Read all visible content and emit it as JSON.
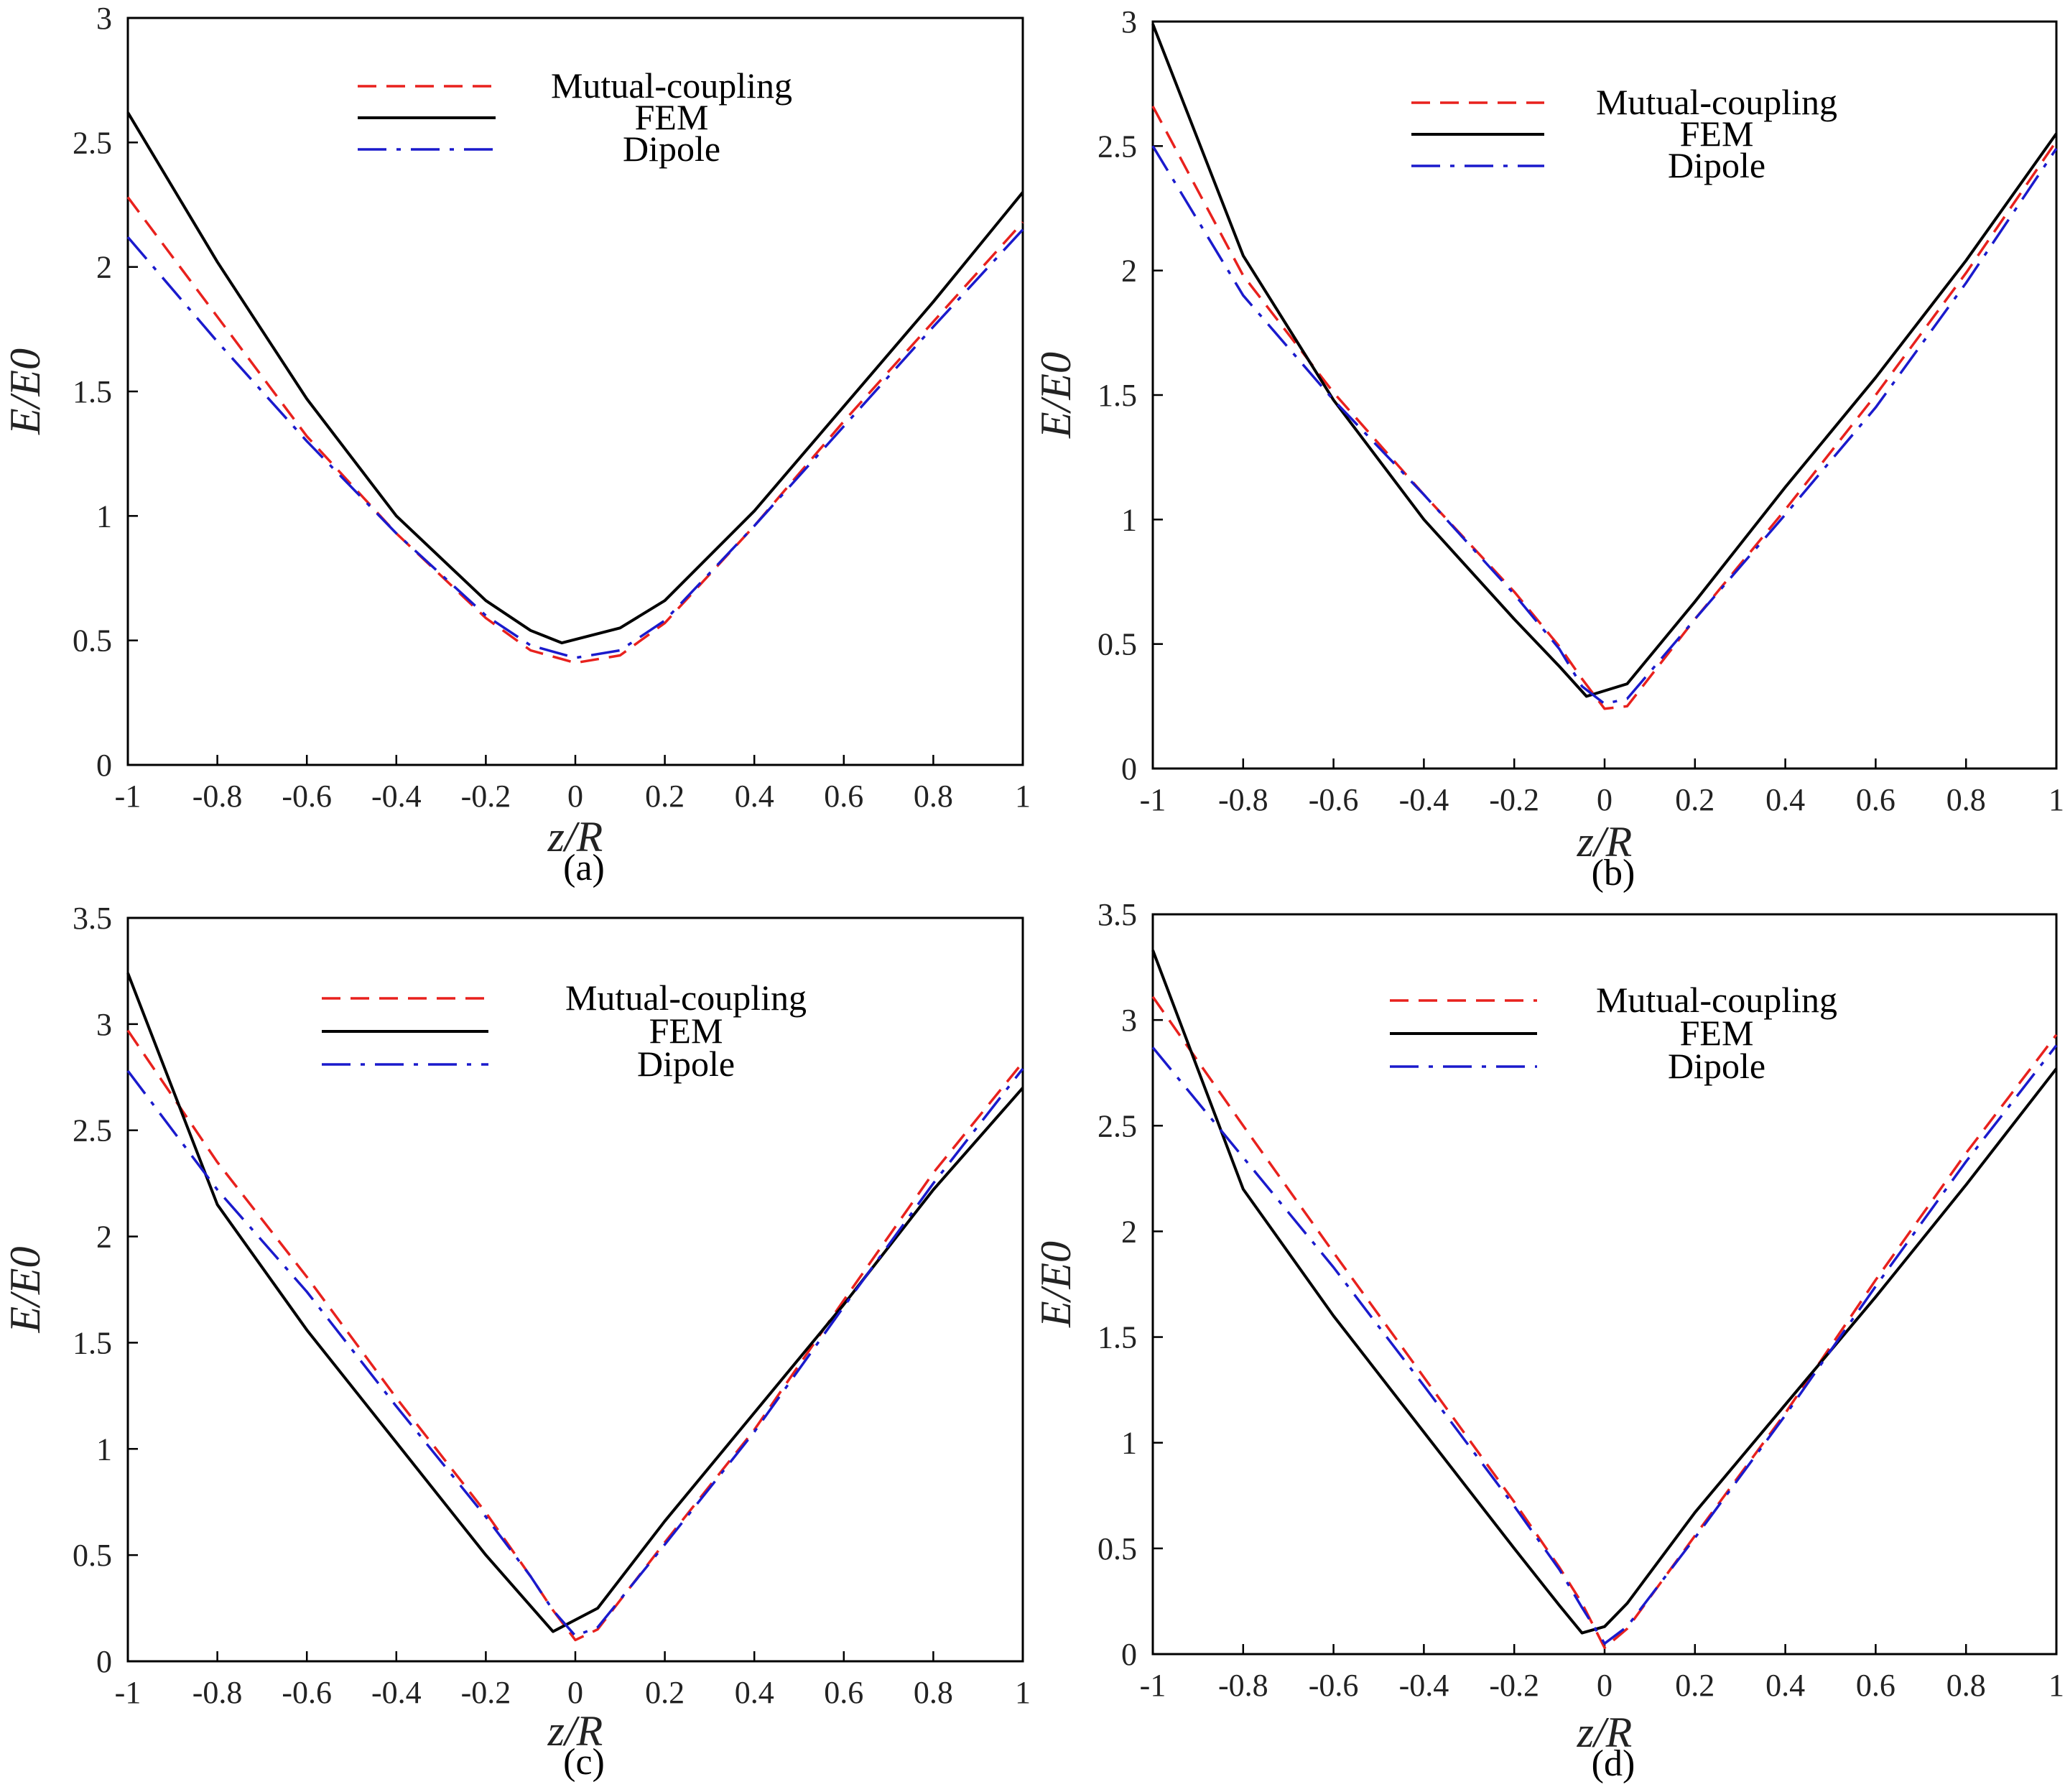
{
  "figure": "Four-panel comparison of normalized electric field along z/R",
  "colors": {
    "mutual_coupling": "#e8211d",
    "fem": "#000000",
    "dipole": "#1a1acc",
    "axis": "#000000"
  },
  "chart_data": [
    {
      "type": "line",
      "panel_label": "(a)",
      "panel_letter": "a",
      "xlabel": "z/R",
      "ylabel": "E/E0",
      "xlim": [
        -1,
        1
      ],
      "ylim": [
        0,
        3
      ],
      "xticks": [
        -1,
        -0.8,
        -0.6,
        -0.4,
        -0.2,
        0,
        0.2,
        0.4,
        0.6,
        0.8,
        1
      ],
      "xtick_labels": [
        "-1",
        "-0.8",
        "-0.6",
        "-0.4",
        "-0.2",
        "0",
        "0.2",
        "0.4",
        "0.6",
        "0.8",
        "1"
      ],
      "yticks": [
        0,
        0.5,
        1,
        1.5,
        2,
        2.5,
        3
      ],
      "ytick_labels": [
        "0",
        "0.5",
        "1",
        "1.5",
        "2",
        "2.5",
        "3"
      ],
      "legend": [
        "Mutual-coupling",
        "FEM",
        "Dipole"
      ],
      "legend_position": "top-center",
      "series": [
        {
          "name": "Mutual-coupling",
          "style": "dashed",
          "x": [
            -1,
            -0.8,
            -0.6,
            -0.4,
            -0.2,
            -0.1,
            0,
            0.1,
            0.2,
            0.4,
            0.6,
            0.8,
            1
          ],
          "y": [
            2.28,
            1.8,
            1.32,
            0.93,
            0.59,
            0.46,
            0.41,
            0.44,
            0.57,
            0.96,
            1.38,
            1.78,
            2.18
          ]
        },
        {
          "name": "FEM",
          "style": "solid",
          "x": [
            -1,
            -0.8,
            -0.6,
            -0.4,
            -0.2,
            -0.1,
            -0.03,
            0.1,
            0.2,
            0.4,
            0.6,
            0.8,
            1
          ],
          "y": [
            2.62,
            2.02,
            1.47,
            1.0,
            0.66,
            0.54,
            0.49,
            0.55,
            0.66,
            1.02,
            1.44,
            1.86,
            2.3
          ]
        },
        {
          "name": "Dipole",
          "style": "dashdot",
          "x": [
            -1,
            -0.8,
            -0.6,
            -0.4,
            -0.2,
            -0.1,
            0,
            0.1,
            0.2,
            0.4,
            0.6,
            0.8,
            1
          ],
          "y": [
            2.12,
            1.7,
            1.3,
            0.93,
            0.6,
            0.48,
            0.43,
            0.46,
            0.58,
            0.96,
            1.36,
            1.76,
            2.15
          ]
        }
      ]
    },
    {
      "type": "line",
      "panel_label": "(b)",
      "panel_letter": "b",
      "xlabel": "z/R",
      "ylabel": "E/E0",
      "xlim": [
        -1,
        1
      ],
      "ylim": [
        0,
        3
      ],
      "xticks": [
        -1,
        -0.8,
        -0.6,
        -0.4,
        -0.2,
        0,
        0.2,
        0.4,
        0.6,
        0.8,
        1
      ],
      "xtick_labels": [
        "-1",
        "-0.8",
        "-0.6",
        "-0.4",
        "-0.2",
        "0",
        "0.2",
        "0.4",
        "0.6",
        "0.8",
        "1"
      ],
      "yticks": [
        0,
        0.5,
        1,
        1.5,
        2,
        2.5,
        3
      ],
      "ytick_labels": [
        "0",
        "0.5",
        "1",
        "1.5",
        "2",
        "2.5",
        "3"
      ],
      "legend": [
        "Mutual-coupling",
        "FEM",
        "Dipole"
      ],
      "legend_position": "top-center",
      "series": [
        {
          "name": "Mutual-coupling",
          "style": "dashed",
          "x": [
            -1,
            -0.8,
            -0.6,
            -0.4,
            -0.2,
            -0.1,
            -0.05,
            0,
            0.05,
            0.2,
            0.4,
            0.6,
            0.8,
            1
          ],
          "y": [
            2.66,
            1.98,
            1.51,
            1.1,
            0.71,
            0.49,
            0.36,
            0.24,
            0.25,
            0.6,
            1.04,
            1.5,
            1.99,
            2.52
          ]
        },
        {
          "name": "FEM",
          "style": "solid",
          "x": [
            -1,
            -0.8,
            -0.6,
            -0.4,
            -0.2,
            -0.1,
            -0.04,
            0.05,
            0.2,
            0.4,
            0.6,
            0.8,
            1
          ],
          "y": [
            2.99,
            2.06,
            1.48,
            1.0,
            0.6,
            0.41,
            0.29,
            0.34,
            0.67,
            1.13,
            1.57,
            2.04,
            2.55
          ]
        },
        {
          "name": "Dipole",
          "style": "dashdot",
          "x": [
            -1,
            -0.8,
            -0.6,
            -0.4,
            -0.2,
            -0.1,
            -0.05,
            0,
            0.05,
            0.2,
            0.4,
            0.6,
            0.8,
            1
          ],
          "y": [
            2.5,
            1.9,
            1.48,
            1.1,
            0.7,
            0.48,
            0.33,
            0.26,
            0.28,
            0.6,
            1.02,
            1.45,
            1.95,
            2.49
          ]
        }
      ]
    },
    {
      "type": "line",
      "panel_label": "(c)",
      "panel_letter": "c",
      "xlabel": "z/R",
      "ylabel": "E/E0",
      "xlim": [
        -1,
        1
      ],
      "ylim": [
        0,
        3.5
      ],
      "xticks": [
        -1,
        -0.8,
        -0.6,
        -0.4,
        -0.2,
        0,
        0.2,
        0.4,
        0.6,
        0.8,
        1
      ],
      "xtick_labels": [
        "-1",
        "-0.8",
        "-0.6",
        "-0.4",
        "-0.2",
        "0",
        "0.2",
        "0.4",
        "0.6",
        "0.8",
        "1"
      ],
      "yticks": [
        0,
        0.5,
        1,
        1.5,
        2,
        2.5,
        3,
        3.5
      ],
      "ytick_labels": [
        "0",
        "0.5",
        "1",
        "1.5",
        "2",
        "2.5",
        "3",
        "3.5"
      ],
      "legend": [
        "Mutual-coupling",
        "FEM",
        "Dipole"
      ],
      "legend_position": "top-center",
      "series": [
        {
          "name": "Mutual-coupling",
          "style": "dashed",
          "x": [
            -1,
            -0.8,
            -0.6,
            -0.4,
            -0.2,
            -0.1,
            -0.05,
            0,
            0.05,
            0.2,
            0.4,
            0.6,
            0.8,
            1
          ],
          "y": [
            2.97,
            2.35,
            1.81,
            1.24,
            0.7,
            0.4,
            0.24,
            0.1,
            0.15,
            0.56,
            1.09,
            1.7,
            2.3,
            2.82
          ]
        },
        {
          "name": "FEM",
          "style": "solid",
          "x": [
            -1,
            -0.8,
            -0.6,
            -0.4,
            -0.2,
            -0.1,
            -0.05,
            0.05,
            0.2,
            0.4,
            0.6,
            0.8,
            1
          ],
          "y": [
            3.24,
            2.15,
            1.56,
            1.03,
            0.5,
            0.26,
            0.14,
            0.25,
            0.66,
            1.17,
            1.68,
            2.22,
            2.7
          ]
        },
        {
          "name": "Dipole",
          "style": "dashdot",
          "x": [
            -1,
            -0.8,
            -0.6,
            -0.4,
            -0.2,
            -0.1,
            -0.05,
            0,
            0.05,
            0.2,
            0.4,
            0.6,
            0.8,
            1
          ],
          "y": [
            2.78,
            2.22,
            1.74,
            1.2,
            0.68,
            0.4,
            0.24,
            0.12,
            0.16,
            0.55,
            1.08,
            1.67,
            2.25,
            2.79
          ]
        }
      ]
    },
    {
      "type": "line",
      "panel_label": "(d)",
      "panel_letter": "d",
      "xlabel": "z/R",
      "ylabel": "E/E0",
      "xlim": [
        -1,
        1
      ],
      "ylim": [
        0,
        3.5
      ],
      "xticks": [
        -1,
        -0.8,
        -0.6,
        -0.4,
        -0.2,
        0,
        0.2,
        0.4,
        0.6,
        0.8,
        1
      ],
      "xtick_labels": [
        "-1",
        "-0.8",
        "-0.6",
        "-0.4",
        "-0.2",
        "0",
        "0.2",
        "0.4",
        "0.6",
        "0.8",
        "1"
      ],
      "yticks": [
        0,
        0.5,
        1,
        1.5,
        2,
        2.5,
        3,
        3.5
      ],
      "ytick_labels": [
        "0",
        "0.5",
        "1",
        "1.5",
        "2",
        "2.5",
        "3",
        "3.5"
      ],
      "legend": [
        "Mutual-coupling",
        "FEM",
        "Dipole"
      ],
      "legend_position": "top-center",
      "series": [
        {
          "name": "Mutual-coupling",
          "style": "dashed",
          "x": [
            -1,
            -0.8,
            -0.6,
            -0.4,
            -0.2,
            -0.1,
            -0.05,
            0,
            0.05,
            0.2,
            0.4,
            0.6,
            0.8,
            1
          ],
          "y": [
            3.11,
            2.5,
            1.9,
            1.31,
            0.72,
            0.41,
            0.24,
            0.03,
            0.12,
            0.56,
            1.14,
            1.77,
            2.37,
            2.93
          ]
        },
        {
          "name": "FEM",
          "style": "solid",
          "x": [
            -1,
            -0.8,
            -0.6,
            -0.4,
            -0.2,
            -0.1,
            -0.05,
            0,
            0.05,
            0.2,
            0.4,
            0.6,
            0.8,
            1
          ],
          "y": [
            3.33,
            2.2,
            1.6,
            1.05,
            0.5,
            0.23,
            0.1,
            0.13,
            0.24,
            0.67,
            1.18,
            1.69,
            2.22,
            2.77
          ]
        },
        {
          "name": "Dipole",
          "style": "dashdot",
          "x": [
            -1,
            -0.8,
            -0.6,
            -0.4,
            -0.2,
            -0.1,
            -0.05,
            0,
            0.05,
            0.2,
            0.4,
            0.6,
            0.8,
            1
          ],
          "y": [
            2.87,
            2.35,
            1.83,
            1.27,
            0.7,
            0.4,
            0.22,
            0.05,
            0.13,
            0.55,
            1.13,
            1.74,
            2.33,
            2.88
          ]
        }
      ]
    }
  ]
}
